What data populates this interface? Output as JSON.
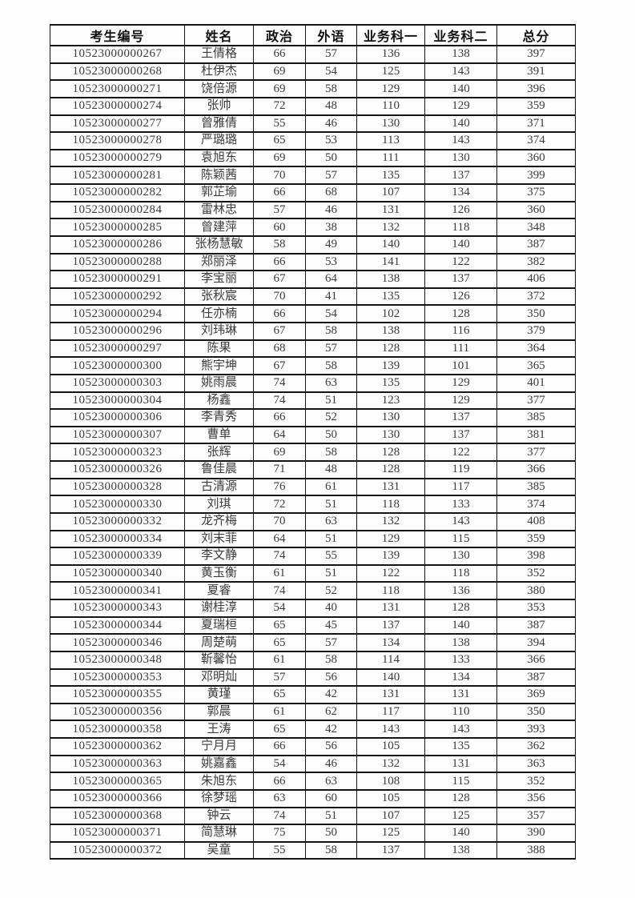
{
  "table": {
    "columns": [
      {
        "key": "candidate_id",
        "label": "考生编号"
      },
      {
        "key": "name",
        "label": "姓名"
      },
      {
        "key": "politics",
        "label": "政治"
      },
      {
        "key": "foreign_lang",
        "label": "外语"
      },
      {
        "key": "subject_one",
        "label": "业务科一"
      },
      {
        "key": "subject_two",
        "label": "业务科二"
      },
      {
        "key": "total",
        "label": "总分"
      }
    ],
    "rows": [
      [
        "10523000000267",
        "王倩格",
        "66",
        "57",
        "136",
        "138",
        "397"
      ],
      [
        "10523000000268",
        "杜伊杰",
        "69",
        "54",
        "125",
        "143",
        "391"
      ],
      [
        "10523000000271",
        "饶倍源",
        "69",
        "58",
        "129",
        "140",
        "396"
      ],
      [
        "10523000000274",
        "张帅",
        "72",
        "48",
        "110",
        "129",
        "359"
      ],
      [
        "10523000000277",
        "曾雅倩",
        "55",
        "46",
        "130",
        "140",
        "371"
      ],
      [
        "10523000000278",
        "严璐璐",
        "65",
        "53",
        "113",
        "143",
        "374"
      ],
      [
        "10523000000279",
        "袁旭东",
        "69",
        "50",
        "111",
        "130",
        "360"
      ],
      [
        "10523000000281",
        "陈颖茜",
        "70",
        "57",
        "135",
        "137",
        "399"
      ],
      [
        "10523000000282",
        "郭芷瑜",
        "66",
        "68",
        "107",
        "134",
        "375"
      ],
      [
        "10523000000284",
        "雷林忠",
        "57",
        "46",
        "131",
        "126",
        "360"
      ],
      [
        "10523000000285",
        "曾建萍",
        "60",
        "38",
        "132",
        "118",
        "348"
      ],
      [
        "10523000000286",
        "张杨慧敏",
        "58",
        "49",
        "140",
        "140",
        "387"
      ],
      [
        "10523000000288",
        "郑丽泽",
        "66",
        "53",
        "141",
        "122",
        "382"
      ],
      [
        "10523000000291",
        "李宝丽",
        "67",
        "64",
        "138",
        "137",
        "406"
      ],
      [
        "10523000000292",
        "张秋宸",
        "70",
        "41",
        "135",
        "126",
        "372"
      ],
      [
        "10523000000294",
        "任亦楠",
        "66",
        "54",
        "102",
        "128",
        "350"
      ],
      [
        "10523000000296",
        "刘玮琳",
        "67",
        "58",
        "138",
        "116",
        "379"
      ],
      [
        "10523000000297",
        "陈果",
        "68",
        "57",
        "128",
        "111",
        "364"
      ],
      [
        "10523000000300",
        "熊宇坤",
        "67",
        "58",
        "139",
        "101",
        "365"
      ],
      [
        "10523000000303",
        "姚雨晨",
        "74",
        "63",
        "135",
        "129",
        "401"
      ],
      [
        "10523000000304",
        "杨鑫",
        "74",
        "51",
        "123",
        "129",
        "377"
      ],
      [
        "10523000000306",
        "李青秀",
        "66",
        "52",
        "130",
        "137",
        "385"
      ],
      [
        "10523000000307",
        "曹单",
        "64",
        "50",
        "130",
        "137",
        "381"
      ],
      [
        "10523000000323",
        "张辉",
        "69",
        "58",
        "128",
        "122",
        "377"
      ],
      [
        "10523000000326",
        "鲁佳晨",
        "71",
        "48",
        "128",
        "119",
        "366"
      ],
      [
        "10523000000328",
        "古清源",
        "76",
        "61",
        "131",
        "117",
        "385"
      ],
      [
        "10523000000330",
        "刘琪",
        "72",
        "51",
        "118",
        "133",
        "374"
      ],
      [
        "10523000000332",
        "龙齐梅",
        "70",
        "63",
        "132",
        "143",
        "408"
      ],
      [
        "10523000000334",
        "刘末菲",
        "64",
        "51",
        "129",
        "115",
        "359"
      ],
      [
        "10523000000339",
        "李文静",
        "74",
        "55",
        "139",
        "130",
        "398"
      ],
      [
        "10523000000340",
        "黄玉衡",
        "61",
        "51",
        "122",
        "118",
        "352"
      ],
      [
        "10523000000341",
        "夏睿",
        "74",
        "52",
        "118",
        "136",
        "380"
      ],
      [
        "10523000000343",
        "谢桂淳",
        "54",
        "40",
        "131",
        "128",
        "353"
      ],
      [
        "10523000000344",
        "夏瑞桓",
        "65",
        "45",
        "137",
        "140",
        "387"
      ],
      [
        "10523000000346",
        "周楚萌",
        "65",
        "57",
        "134",
        "138",
        "394"
      ],
      [
        "10523000000348",
        "靳馨怡",
        "61",
        "58",
        "114",
        "133",
        "366"
      ],
      [
        "10523000000353",
        "邓明灿",
        "57",
        "56",
        "140",
        "134",
        "387"
      ],
      [
        "10523000000355",
        "黄瑾",
        "65",
        "42",
        "131",
        "131",
        "369"
      ],
      [
        "10523000000356",
        "郭晨",
        "61",
        "62",
        "117",
        "110",
        "350"
      ],
      [
        "10523000000358",
        "王涛",
        "65",
        "42",
        "143",
        "143",
        "393"
      ],
      [
        "10523000000362",
        "宁月月",
        "66",
        "56",
        "105",
        "135",
        "362"
      ],
      [
        "10523000000363",
        "姚嘉鑫",
        "54",
        "46",
        "132",
        "131",
        "363"
      ],
      [
        "10523000000365",
        "朱旭东",
        "66",
        "63",
        "108",
        "115",
        "352"
      ],
      [
        "10523000000366",
        "徐梦瑶",
        "63",
        "60",
        "105",
        "128",
        "356"
      ],
      [
        "10523000000368",
        "钟云",
        "74",
        "51",
        "107",
        "125",
        "357"
      ],
      [
        "10523000000371",
        "简慧琳",
        "75",
        "50",
        "125",
        "140",
        "390"
      ],
      [
        "10523000000372",
        "吴童",
        "55",
        "58",
        "137",
        "138",
        "388"
      ]
    ]
  }
}
